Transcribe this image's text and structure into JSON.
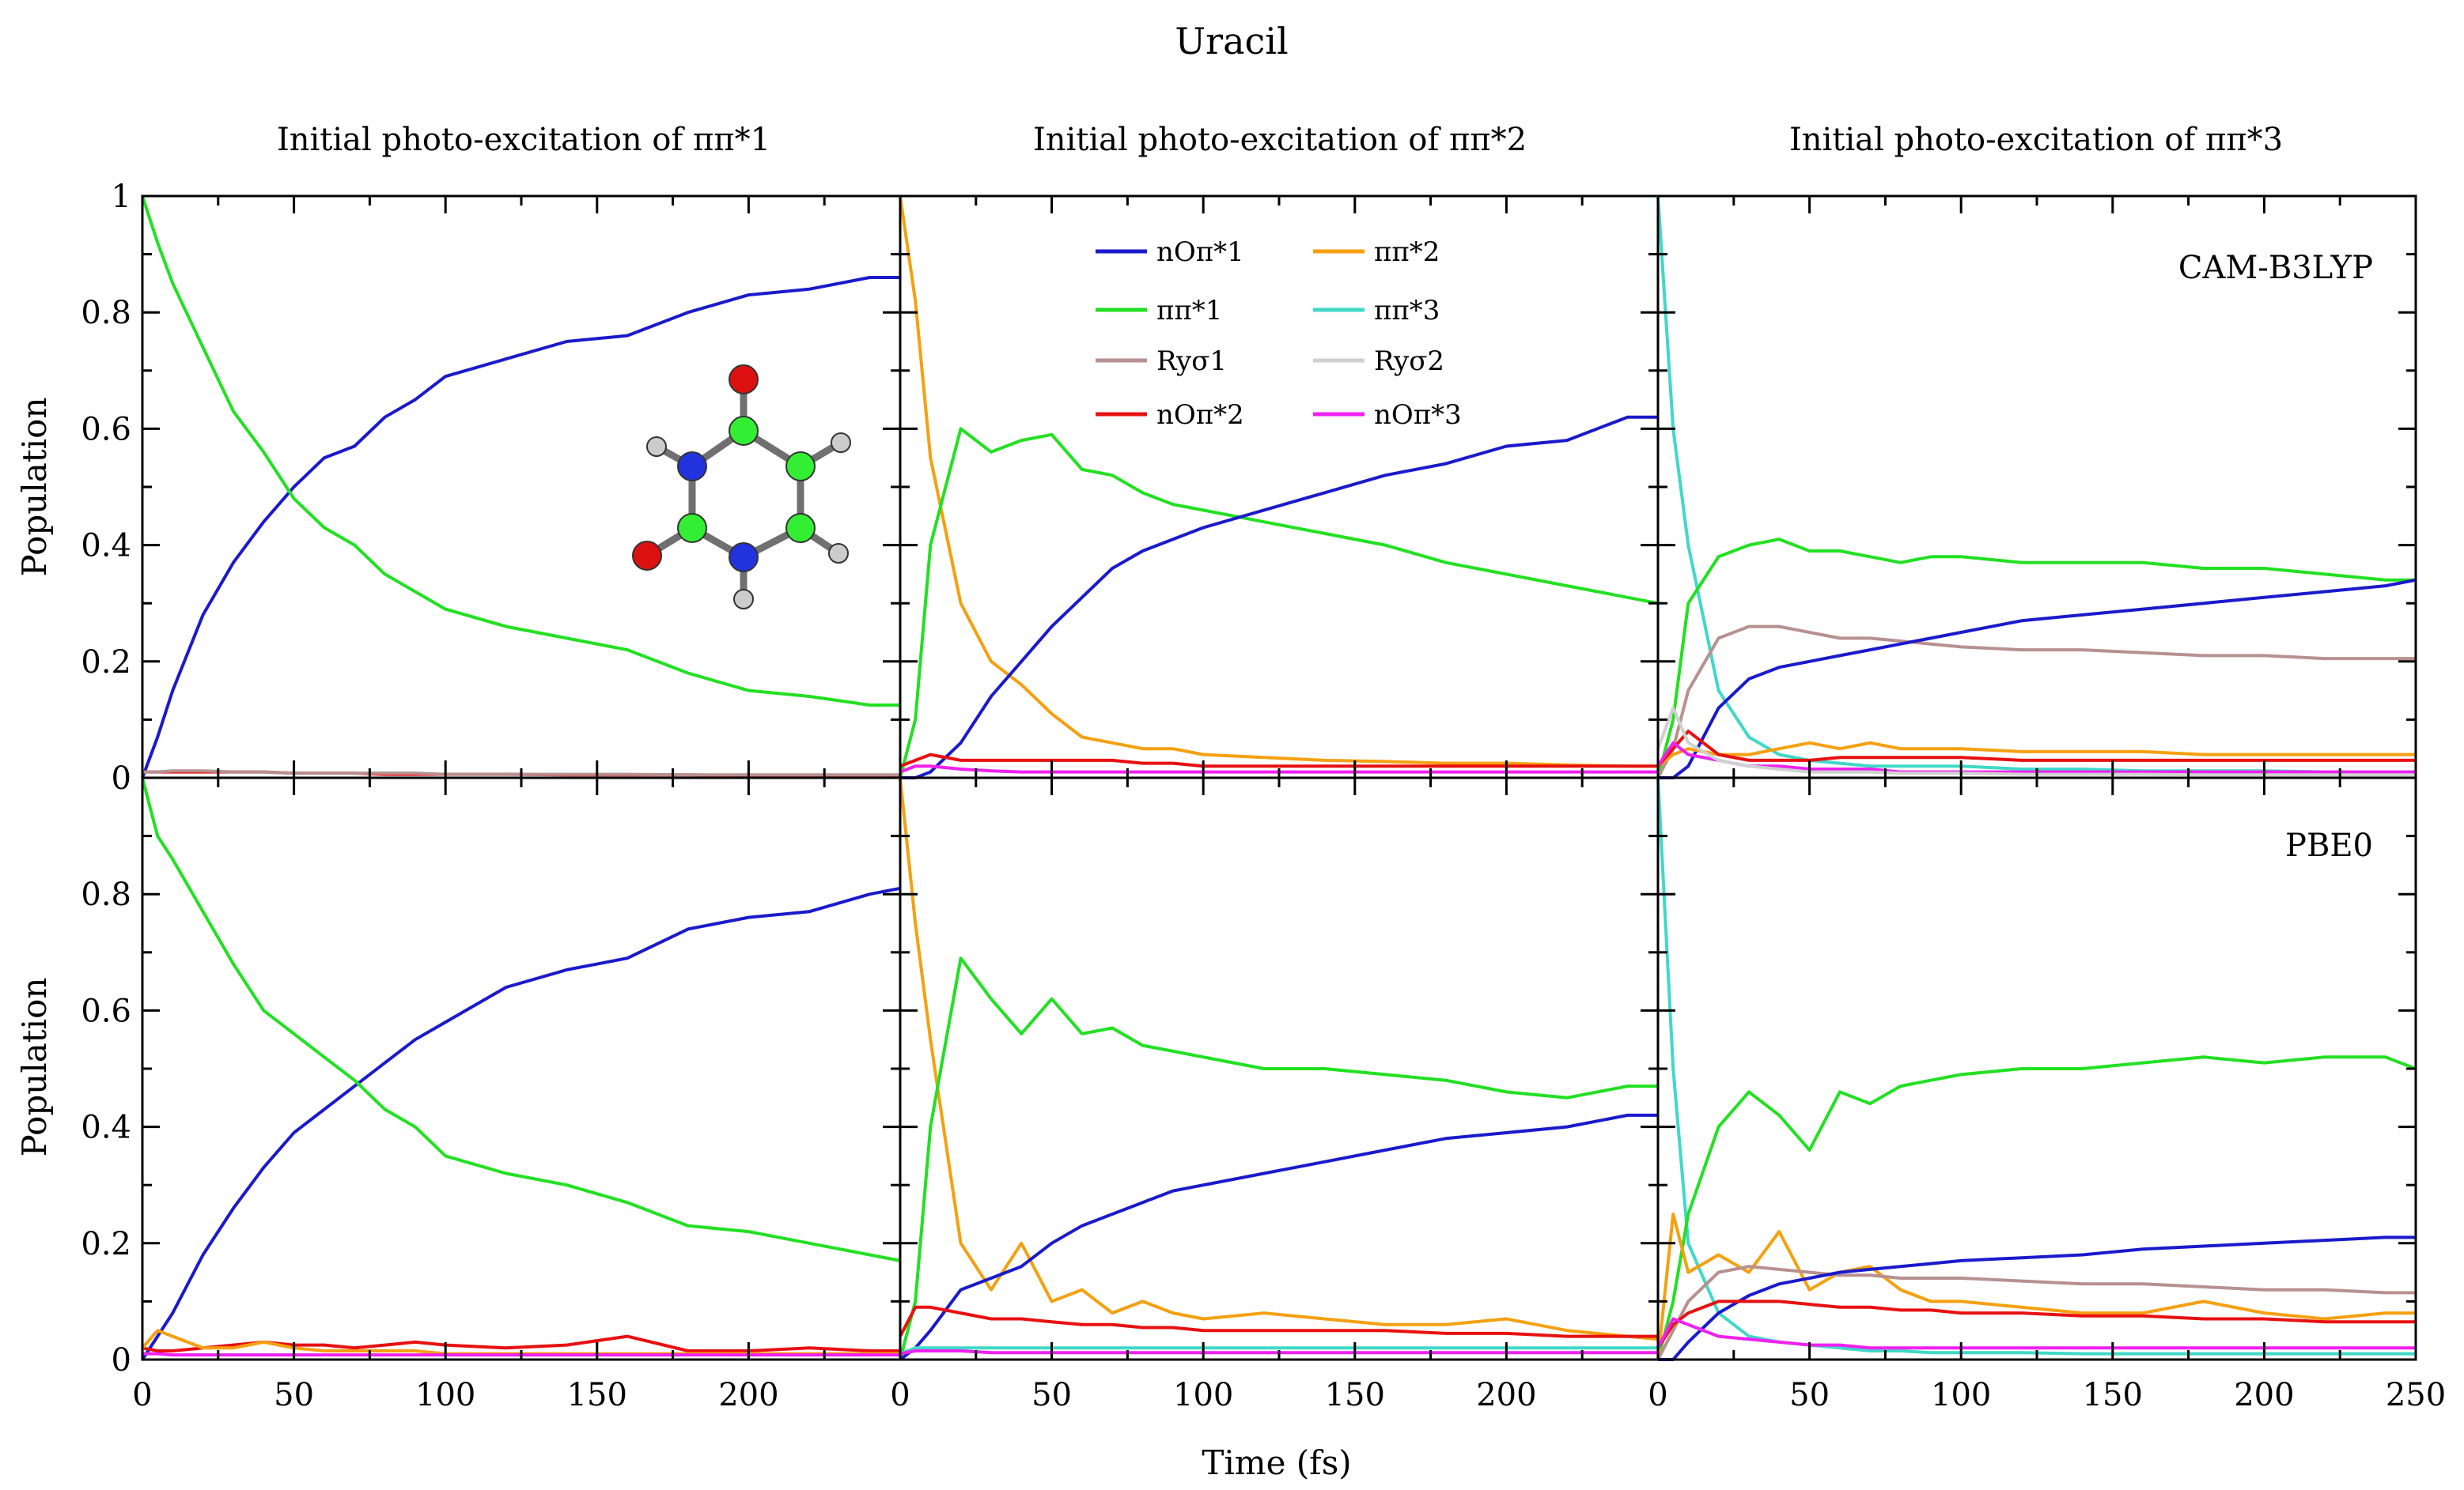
{
  "chart_data": {
    "type": "line",
    "title": "Uracil",
    "xlabel": "Time (fs)",
    "ylabel": "Population",
    "xlim": [
      0,
      250
    ],
    "ylim": [
      0,
      1
    ],
    "xticks": [
      0,
      50,
      100,
      150,
      200,
      250
    ],
    "xtick_labels": [
      "0",
      "50",
      "100",
      "150",
      "200",
      "250"
    ],
    "yticks": [
      0,
      0.2,
      0.4,
      0.6,
      0.8,
      1
    ],
    "ytick_labels": [
      "0",
      "0.2",
      "0.4",
      "0.6",
      "0.8",
      "1"
    ],
    "column_titles": [
      "Initial photo-excitation of ππ*1",
      "Initial photo-excitation of ππ*2",
      "Initial photo-excitation of ππ*3"
    ],
    "row_labels": [
      "CAM-B3LYP",
      "PBE0"
    ],
    "x": [
      0,
      5,
      10,
      20,
      30,
      40,
      50,
      60,
      70,
      80,
      90,
      100,
      120,
      140,
      160,
      180,
      200,
      220,
      240,
      250
    ],
    "legend": [
      {
        "key": "nopi1",
        "label": "nOπ*1",
        "color": "#1a1acc"
      },
      {
        "key": "pipi2",
        "label": "ππ*2",
        "color": "#f5a010"
      },
      {
        "key": "pipi1",
        "label": "ππ*1",
        "color": "#22e022"
      },
      {
        "key": "pipi3",
        "label": "ππ*3",
        "color": "#40d8c8"
      },
      {
        "key": "rys1",
        "label": "Ryσ1",
        "color": "#b89090"
      },
      {
        "key": "rys2",
        "label": "Ryσ2",
        "color": "#d0d0d0"
      },
      {
        "key": "nopi2",
        "label": "nOπ*2",
        "color": "#e81010"
      },
      {
        "key": "nopi3",
        "label": "nOπ*3",
        "color": "#f020f0"
      }
    ],
    "panels": [
      {
        "row": 0,
        "col": 0,
        "series": [
          {
            "key": "nopi1",
            "values": [
              0,
              0.07,
              0.15,
              0.28,
              0.37,
              0.44,
              0.5,
              0.55,
              0.57,
              0.62,
              0.65,
              0.69,
              0.72,
              0.75,
              0.76,
              0.8,
              0.83,
              0.84,
              0.86,
              0.86
            ]
          },
          {
            "key": "pipi1",
            "values": [
              1.0,
              0.92,
              0.85,
              0.74,
              0.63,
              0.56,
              0.48,
              0.43,
              0.4,
              0.35,
              0.32,
              0.29,
              0.26,
              0.24,
              0.22,
              0.18,
              0.15,
              0.14,
              0.125,
              0.125
            ]
          },
          {
            "key": "nopi2",
            "values": [
              0.01,
              0.01,
              0.01,
              0.01,
              0.01,
              0.01,
              0.008,
              0.008,
              0.008,
              0.006,
              0.006,
              0.006,
              0.006,
              0.005,
              0.005,
              0.005,
              0.004,
              0.004,
              0.004,
              0.004
            ]
          },
          {
            "key": "rys1",
            "values": [
              0.01,
              0.01,
              0.012,
              0.012,
              0.01,
              0.01,
              0.008,
              0.008,
              0.008,
              0.008,
              0.008,
              0.006,
              0.006,
              0.006,
              0.006,
              0.005,
              0.005,
              0.005,
              0.005,
              0.005
            ]
          }
        ]
      },
      {
        "row": 0,
        "col": 1,
        "series": [
          {
            "key": "pipi2",
            "values": [
              1.0,
              0.82,
              0.55,
              0.3,
              0.2,
              0.16,
              0.11,
              0.07,
              0.06,
              0.05,
              0.05,
              0.04,
              0.035,
              0.03,
              0.028,
              0.025,
              0.025,
              0.022,
              0.02,
              0.02
            ]
          },
          {
            "key": "pipi1",
            "values": [
              0,
              0.1,
              0.4,
              0.6,
              0.56,
              0.58,
              0.59,
              0.53,
              0.52,
              0.49,
              0.47,
              0.46,
              0.44,
              0.42,
              0.4,
              0.37,
              0.35,
              0.33,
              0.31,
              0.3
            ]
          },
          {
            "key": "nopi1",
            "values": [
              0,
              0.0,
              0.01,
              0.06,
              0.14,
              0.2,
              0.26,
              0.31,
              0.36,
              0.39,
              0.41,
              0.43,
              0.46,
              0.49,
              0.52,
              0.54,
              0.57,
              0.58,
              0.62,
              0.62
            ]
          },
          {
            "key": "nopi2",
            "values": [
              0.02,
              0.03,
              0.04,
              0.03,
              0.03,
              0.03,
              0.03,
              0.03,
              0.03,
              0.025,
              0.025,
              0.02,
              0.02,
              0.02,
              0.02,
              0.02,
              0.02,
              0.02,
              0.02,
              0.02
            ]
          },
          {
            "key": "nopi3",
            "values": [
              0.01,
              0.02,
              0.02,
              0.015,
              0.012,
              0.01,
              0.01,
              0.01,
              0.01,
              0.01,
              0.01,
              0.01,
              0.01,
              0.01,
              0.01,
              0.01,
              0.01,
              0.01,
              0.01,
              0.01
            ]
          }
        ]
      },
      {
        "row": 0,
        "col": 2,
        "series": [
          {
            "key": "pipi3",
            "values": [
              1.0,
              0.6,
              0.4,
              0.15,
              0.07,
              0.04,
              0.03,
              0.025,
              0.02,
              0.02,
              0.02,
              0.02,
              0.015,
              0.015,
              0.012,
              0.012,
              0.012,
              0.01,
              0.01,
              0.01
            ]
          },
          {
            "key": "pipi1",
            "values": [
              0,
              0.1,
              0.3,
              0.38,
              0.4,
              0.41,
              0.39,
              0.39,
              0.38,
              0.37,
              0.38,
              0.38,
              0.37,
              0.37,
              0.37,
              0.36,
              0.36,
              0.35,
              0.34,
              0.34
            ]
          },
          {
            "key": "rys1",
            "values": [
              0,
              0.05,
              0.15,
              0.24,
              0.26,
              0.26,
              0.25,
              0.24,
              0.24,
              0.235,
              0.23,
              0.225,
              0.22,
              0.22,
              0.215,
              0.21,
              0.21,
              0.205,
              0.205,
              0.205
            ]
          },
          {
            "key": "nopi1",
            "values": [
              0,
              0,
              0.02,
              0.12,
              0.17,
              0.19,
              0.2,
              0.21,
              0.22,
              0.23,
              0.24,
              0.25,
              0.27,
              0.28,
              0.29,
              0.3,
              0.31,
              0.32,
              0.33,
              0.34
            ]
          },
          {
            "key": "pipi2",
            "values": [
              0.02,
              0.04,
              0.05,
              0.04,
              0.04,
              0.05,
              0.06,
              0.05,
              0.06,
              0.05,
              0.05,
              0.05,
              0.045,
              0.045,
              0.045,
              0.04,
              0.04,
              0.04,
              0.04,
              0.04
            ]
          },
          {
            "key": "nopi2",
            "values": [
              0.02,
              0.05,
              0.08,
              0.04,
              0.03,
              0.03,
              0.03,
              0.035,
              0.035,
              0.035,
              0.035,
              0.035,
              0.03,
              0.03,
              0.03,
              0.03,
              0.03,
              0.03,
              0.03,
              0.03
            ]
          },
          {
            "key": "nopi3",
            "values": [
              0.02,
              0.06,
              0.04,
              0.03,
              0.02,
              0.02,
              0.015,
              0.015,
              0.015,
              0.01,
              0.01,
              0.01,
              0.01,
              0.01,
              0.01,
              0.01,
              0.01,
              0.01,
              0.01,
              0.01
            ]
          },
          {
            "key": "rys2",
            "values": [
              0.05,
              0.12,
              0.06,
              0.03,
              0.02,
              0.015,
              0.01,
              0.01,
              0.01,
              0.008,
              0.008,
              0.008,
              0.006,
              0.006,
              0.006,
              0.005,
              0.005,
              0.005,
              0.005,
              0.005
            ]
          }
        ]
      },
      {
        "row": 1,
        "col": 0,
        "series": [
          {
            "key": "nopi1",
            "values": [
              0,
              0.04,
              0.08,
              0.18,
              0.26,
              0.33,
              0.39,
              0.43,
              0.47,
              0.51,
              0.55,
              0.58,
              0.64,
              0.67,
              0.69,
              0.74,
              0.76,
              0.77,
              0.8,
              0.81
            ]
          },
          {
            "key": "pipi1",
            "values": [
              1.0,
              0.9,
              0.86,
              0.77,
              0.68,
              0.6,
              0.56,
              0.52,
              0.48,
              0.43,
              0.4,
              0.35,
              0.32,
              0.3,
              0.27,
              0.23,
              0.22,
              0.2,
              0.18,
              0.17
            ]
          },
          {
            "key": "nopi2",
            "values": [
              0.02,
              0.015,
              0.015,
              0.02,
              0.025,
              0.03,
              0.025,
              0.025,
              0.02,
              0.025,
              0.03,
              0.025,
              0.02,
              0.025,
              0.04,
              0.015,
              0.015,
              0.02,
              0.015,
              0.015
            ]
          },
          {
            "key": "pipi2",
            "values": [
              0.02,
              0.05,
              0.04,
              0.02,
              0.02,
              0.03,
              0.02,
              0.015,
              0.015,
              0.015,
              0.015,
              0.01,
              0.01,
              0.01,
              0.01,
              0.01,
              0.01,
              0.01,
              0.01,
              0.01
            ]
          },
          {
            "key": "nopi3",
            "values": [
              0.01,
              0.01,
              0.008,
              0.008,
              0.008,
              0.008,
              0.008,
              0.008,
              0.008,
              0.008,
              0.008,
              0.008,
              0.008,
              0.008,
              0.008,
              0.008,
              0.008,
              0.008,
              0.008,
              0.008
            ]
          }
        ]
      },
      {
        "row": 1,
        "col": 1,
        "series": [
          {
            "key": "pipi2",
            "values": [
              1.0,
              0.75,
              0.55,
              0.2,
              0.12,
              0.2,
              0.1,
              0.12,
              0.08,
              0.1,
              0.08,
              0.07,
              0.08,
              0.07,
              0.06,
              0.06,
              0.07,
              0.05,
              0.04,
              0.035
            ]
          },
          {
            "key": "pipi1",
            "values": [
              0,
              0.1,
              0.4,
              0.69,
              0.62,
              0.56,
              0.62,
              0.56,
              0.57,
              0.54,
              0.53,
              0.52,
              0.5,
              0.5,
              0.49,
              0.48,
              0.46,
              0.45,
              0.47,
              0.47
            ]
          },
          {
            "key": "nopi1",
            "values": [
              0,
              0.02,
              0.05,
              0.12,
              0.14,
              0.16,
              0.2,
              0.23,
              0.25,
              0.27,
              0.29,
              0.3,
              0.32,
              0.34,
              0.36,
              0.38,
              0.39,
              0.4,
              0.42,
              0.42
            ]
          },
          {
            "key": "nopi2",
            "values": [
              0.04,
              0.09,
              0.09,
              0.08,
              0.07,
              0.07,
              0.065,
              0.06,
              0.06,
              0.055,
              0.055,
              0.05,
              0.05,
              0.05,
              0.05,
              0.045,
              0.045,
              0.04,
              0.04,
              0.04
            ]
          },
          {
            "key": "pipi3",
            "values": [
              0.01,
              0.02,
              0.02,
              0.02,
              0.02,
              0.02,
              0.02,
              0.02,
              0.02,
              0.02,
              0.02,
              0.02,
              0.02,
              0.02,
              0.02,
              0.02,
              0.02,
              0.02,
              0.02,
              0.02
            ]
          },
          {
            "key": "nopi3",
            "values": [
              0.01,
              0.015,
              0.015,
              0.015,
              0.012,
              0.012,
              0.012,
              0.012,
              0.012,
              0.012,
              0.012,
              0.012,
              0.012,
              0.012,
              0.012,
              0.012,
              0.012,
              0.012,
              0.012,
              0.012
            ]
          }
        ]
      },
      {
        "row": 1,
        "col": 2,
        "series": [
          {
            "key": "pipi3",
            "values": [
              1.0,
              0.5,
              0.2,
              0.08,
              0.04,
              0.03,
              0.025,
              0.02,
              0.015,
              0.015,
              0.012,
              0.012,
              0.012,
              0.01,
              0.01,
              0.01,
              0.01,
              0.01,
              0.01,
              0.01
            ]
          },
          {
            "key": "pipi1",
            "values": [
              0,
              0.1,
              0.25,
              0.4,
              0.46,
              0.42,
              0.36,
              0.46,
              0.44,
              0.47,
              0.48,
              0.49,
              0.5,
              0.5,
              0.51,
              0.52,
              0.51,
              0.52,
              0.52,
              0.5
            ]
          },
          {
            "key": "pipi2",
            "values": [
              0,
              0.25,
              0.15,
              0.18,
              0.15,
              0.22,
              0.12,
              0.15,
              0.16,
              0.12,
              0.1,
              0.1,
              0.09,
              0.08,
              0.08,
              0.1,
              0.08,
              0.07,
              0.08,
              0.08
            ]
          },
          {
            "key": "rys1",
            "values": [
              0,
              0.05,
              0.1,
              0.15,
              0.16,
              0.155,
              0.15,
              0.145,
              0.145,
              0.14,
              0.14,
              0.14,
              0.135,
              0.13,
              0.13,
              0.125,
              0.12,
              0.12,
              0.115,
              0.115
            ]
          },
          {
            "key": "nopi1",
            "values": [
              0,
              0,
              0.03,
              0.08,
              0.11,
              0.13,
              0.14,
              0.15,
              0.155,
              0.16,
              0.165,
              0.17,
              0.175,
              0.18,
              0.19,
              0.195,
              0.2,
              0.205,
              0.21,
              0.21
            ]
          },
          {
            "key": "nopi2",
            "values": [
              0.02,
              0.06,
              0.08,
              0.1,
              0.1,
              0.1,
              0.095,
              0.09,
              0.09,
              0.085,
              0.085,
              0.08,
              0.08,
              0.075,
              0.075,
              0.07,
              0.07,
              0.065,
              0.065,
              0.065
            ]
          },
          {
            "key": "nopi3",
            "values": [
              0.02,
              0.07,
              0.06,
              0.04,
              0.035,
              0.03,
              0.025,
              0.025,
              0.02,
              0.02,
              0.02,
              0.02,
              0.02,
              0.02,
              0.02,
              0.02,
              0.02,
              0.02,
              0.02,
              0.02
            ]
          }
        ]
      }
    ],
    "inset": "uracil molecule (ball-and-stick)"
  }
}
